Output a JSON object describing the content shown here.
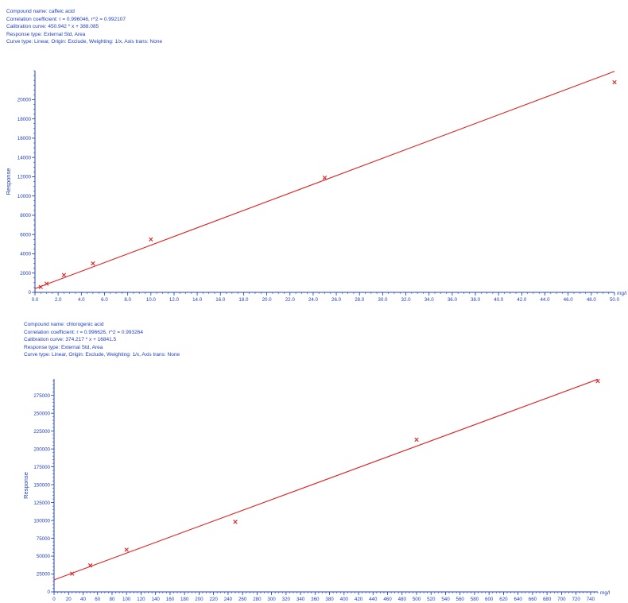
{
  "chart_data": [
    {
      "type": "scatter",
      "info_lines": [
        "Compound name: caffeic acid",
        "Correlation coefficient: r = 0.996046, r^2 = 0.992107",
        "Calibration curve: 450.942 * x + 388.085",
        "Response type: External Std, Area",
        "Curve type: Linear, Origin: Exclude, Weighting: 1/x, Axis trans: None"
      ],
      "ylabel": "Response",
      "xunit": "mg/l",
      "xlim": [
        0,
        50
      ],
      "ylim": [
        0,
        23000
      ],
      "x_ticks": [
        "0.0",
        "2.0",
        "4.0",
        "6.0",
        "8.0",
        "10.0",
        "12.0",
        "14.0",
        "16.0",
        "18.0",
        "20.0",
        "22.0",
        "24.0",
        "26.0",
        "28.0",
        "30.0",
        "32.0",
        "34.0",
        "36.0",
        "38.0",
        "40.0",
        "42.0",
        "44.0",
        "46.0",
        "48.0",
        "50.0"
      ],
      "y_ticks": [
        "0",
        "2000",
        "4000",
        "6000",
        "8000",
        "10000",
        "12000",
        "14000",
        "16000",
        "18000",
        "20000"
      ],
      "points": [
        {
          "x": 0.5,
          "y": 560
        },
        {
          "x": 1.0,
          "y": 900
        },
        {
          "x": 2.5,
          "y": 1800
        },
        {
          "x": 5.0,
          "y": 3000
        },
        {
          "x": 10.0,
          "y": 5500
        },
        {
          "x": 25.0,
          "y": 11900
        },
        {
          "x": 50.0,
          "y": 21800
        }
      ],
      "fit": {
        "slope": 450.942,
        "intercept": 388.085
      },
      "marker": "x",
      "color": "#e02020",
      "axis_color": "#1f3fbf"
    },
    {
      "type": "scatter",
      "info_lines": [
        "Compound name: chlorogenic acid",
        "Correlation coefficient: r = 0.996626, r^2 = 0.993264",
        "Calibration curve: 374.217 * x + 16841.5",
        "Response type: External Std, Area",
        "Curve type: Linear, Origin: Exclude, Weighting: 1/x, Axis trans: None"
      ],
      "ylabel": "Response",
      "xunit": "mg/l",
      "xlim": [
        0,
        750
      ],
      "ylim": [
        0,
        298000
      ],
      "x_ticks": [
        "0",
        "20",
        "40",
        "60",
        "80",
        "100",
        "120",
        "140",
        "160",
        "180",
        "200",
        "220",
        "240",
        "260",
        "280",
        "300",
        "320",
        "340",
        "360",
        "380",
        "400",
        "420",
        "440",
        "460",
        "480",
        "500",
        "520",
        "540",
        "560",
        "580",
        "600",
        "620",
        "640",
        "660",
        "680",
        "700",
        "720",
        "740"
      ],
      "y_ticks": [
        "0",
        "25000",
        "50000",
        "75000",
        "100000",
        "125000",
        "150000",
        "175000",
        "200000",
        "225000",
        "250000",
        "275000"
      ],
      "points": [
        {
          "x": 25,
          "y": 25500
        },
        {
          "x": 50,
          "y": 37000
        },
        {
          "x": 100,
          "y": 59000
        },
        {
          "x": 250,
          "y": 98000
        },
        {
          "x": 500,
          "y": 213000
        },
        {
          "x": 750,
          "y": 295000
        }
      ],
      "fit": {
        "slope": 374.217,
        "intercept": 16841.5
      },
      "marker": "x",
      "color": "#e02020",
      "axis_color": "#1f3fbf"
    }
  ]
}
